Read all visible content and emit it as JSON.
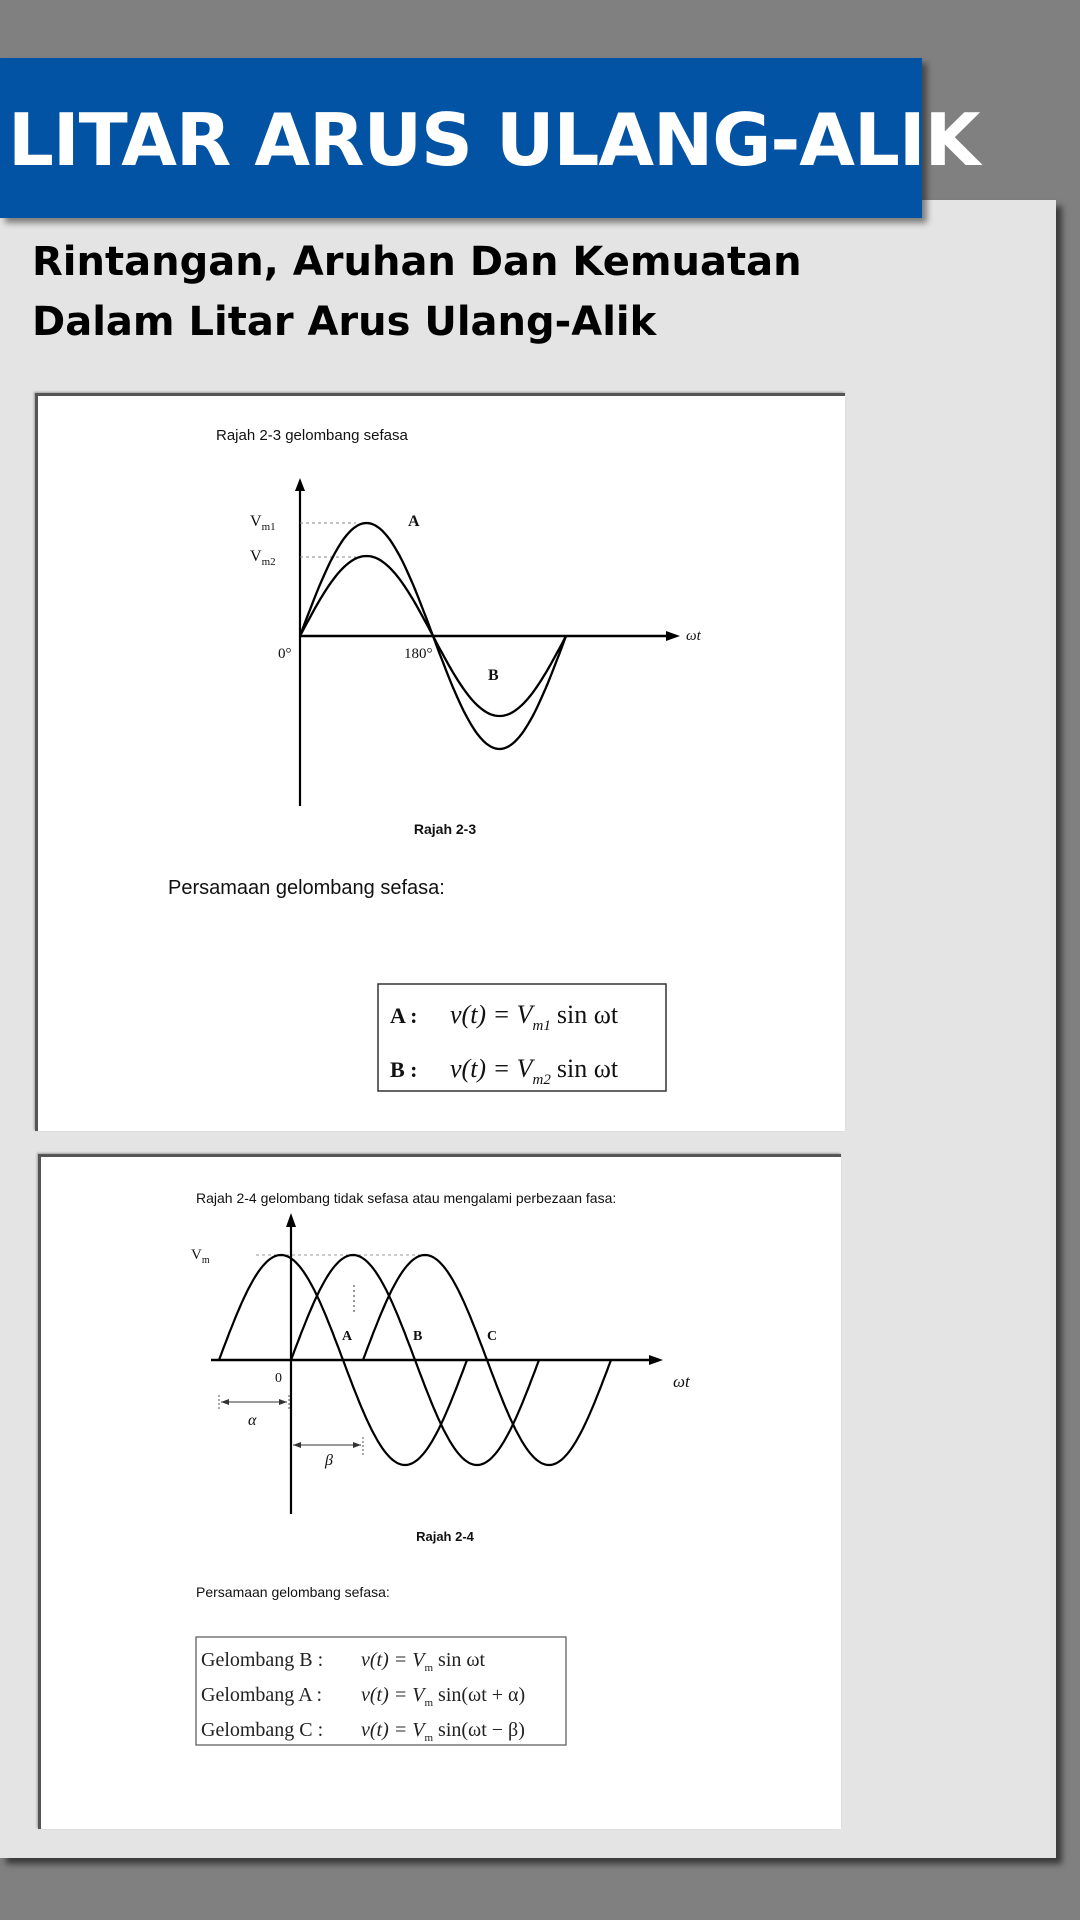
{
  "header": {
    "title": "LITAR ARUS ULANG-ALIK",
    "bg_color": "#0353a4",
    "text_color": "#ffffff"
  },
  "subtitle": {
    "line1": "Rintangan, Aruhan Dan Kemuatan",
    "line2": "Dalam Litar Arus Ulang-Alik"
  },
  "figure1": {
    "caption_top": "Rajah 2-3 gelombang sefasa",
    "label_vm1": "V",
    "label_vm1_sub": "m1",
    "label_vm2": "V",
    "label_vm2_sub": "m2",
    "label_origin": "0°",
    "label_180": "180°",
    "label_wt": "ωt",
    "label_a": "A",
    "label_b": "B",
    "caption_bottom": "Rajah 2-3",
    "equation_heading": "Persamaan gelombang sefasa:",
    "eq_a_label": "A :",
    "eq_a_lhs": "v(t) = V",
    "eq_a_sub": "m1",
    "eq_a_rhs": "sin ωt",
    "eq_b_label": "B :",
    "eq_b_lhs": "v(t) = V",
    "eq_b_sub": "m2",
    "eq_b_rhs": "sin ωt"
  },
  "figure2": {
    "caption_top": "Rajah 2-4 gelombang tidak sefasa atau mengalami perbezaan fasa:",
    "label_vm": "V",
    "label_vm_sub": "m",
    "label_origin": "0",
    "label_wt": "ωt",
    "label_a": "A",
    "label_b": "B",
    "label_c": "C",
    "label_alpha": "α",
    "label_beta": "β",
    "caption_bottom": "Rajah 2-4",
    "equation_heading": "Persamaan gelombang sefasa:",
    "eq_b_label": "Gelombang B :",
    "eq_b_expr": "v(t) = V",
    "eq_b_sub": "m",
    "eq_b_rest": " sin ωt",
    "eq_a_label": "Gelombang A :",
    "eq_a_expr": "v(t) = V",
    "eq_a_sub": "m",
    "eq_a_rest": " sin(ωt + α)",
    "eq_c_label": "Gelombang C :",
    "eq_c_expr": "v(t) = V",
    "eq_c_sub": "m",
    "eq_c_rest": " sin(ωt − β)"
  }
}
